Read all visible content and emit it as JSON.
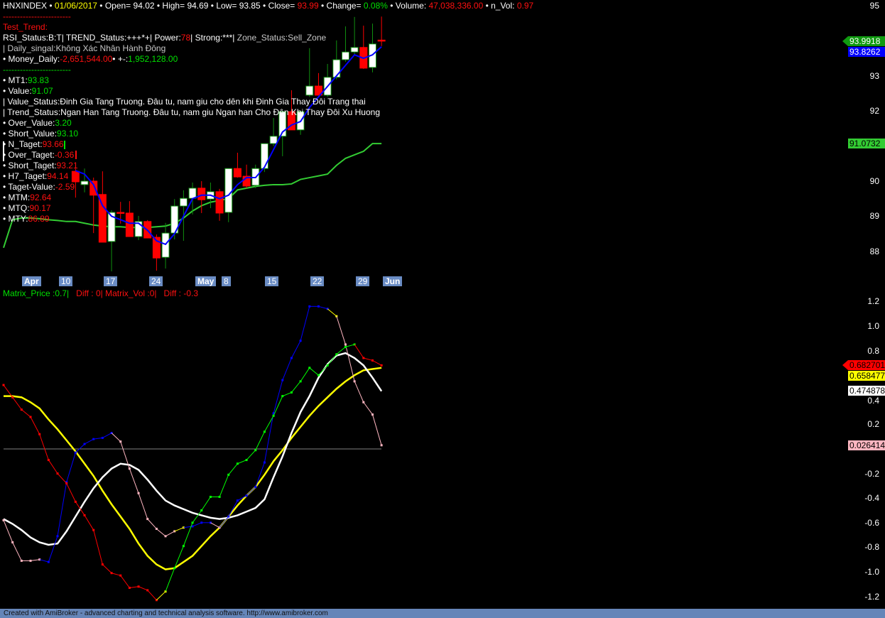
{
  "header_lines": [
    [
      {
        "t": "HNXINDEX",
        "c": "w"
      },
      {
        "t": " • ",
        "c": "w"
      },
      {
        "t": "01/06/2017",
        "c": "y"
      },
      {
        "t": " • Open= 94.02 • High= 94.69 • Low= 93.85 • Close= ",
        "c": "w"
      },
      {
        "t": "93.99",
        "c": "r"
      },
      {
        "t": " • Change= ",
        "c": "w"
      },
      {
        "t": "0.08%",
        "c": "g"
      },
      {
        "t": " • Volume: ",
        "c": "w"
      },
      {
        "t": "47,038,336.00",
        "c": "r"
      },
      {
        "t": " • n_Vol: ",
        "c": "w"
      },
      {
        "t": "0.97",
        "c": "r"
      }
    ],
    [
      {
        "t": "------------------------",
        "c": "r"
      }
    ],
    [
      {
        "t": "Test_Trend:",
        "c": "r"
      }
    ],
    [
      {
        "t": "RSI_Status:B:T| TREND_Status:+++*+| Power:",
        "c": "w"
      },
      {
        "t": "78",
        "c": "r"
      },
      {
        "t": "| Strong:***| ",
        "c": "w"
      },
      {
        "t": "Zone_Status:Sell_Zone",
        "c": "s"
      }
    ],
    [
      {
        "t": "| Daily_singal:Không Xác Nhân Hành Đông",
        "c": "s"
      }
    ],
    [
      {
        "t": "• Money_Daily:",
        "c": "w"
      },
      {
        "t": "-2,651,544.00",
        "c": "r"
      },
      {
        "t": "• +-:",
        "c": "w"
      },
      {
        "t": "1,952,128.00",
        "c": "g"
      }
    ],
    [
      {
        "t": "------------------------",
        "c": "g"
      }
    ],
    [
      {
        "t": "• MT1:",
        "c": "w"
      },
      {
        "t": "93.83",
        "c": "g"
      }
    ],
    [
      {
        "t": "• Value:",
        "c": "w"
      },
      {
        "t": "91.07",
        "c": "g"
      }
    ],
    [
      {
        "t": "| Value_Status:Đinh Gia Tang Truong. Đâu tu, nam giu cho dên khi Đinh Gia Thay Đôi Trang thai",
        "c": "w"
      }
    ],
    [
      {
        "t": "| Trend_Status:Ngan Han Tang Truong. Đâu tu, nam giu Ngan han Cho Đên Khi Thay Đôi Xu Huong",
        "c": "w"
      }
    ],
    [
      {
        "t": "• Over_Value:",
        "c": "w"
      },
      {
        "t": "3.20",
        "c": "g"
      }
    ],
    [
      {
        "t": "• Short_Value:",
        "c": "w"
      },
      {
        "t": "93.10",
        "c": "g"
      }
    ],
    [
      {
        "t": "• N_Taget:",
        "c": "w"
      },
      {
        "t": "93.66",
        "c": "r"
      }
    ],
    [
      {
        "t": "• Over_Taget:",
        "c": "w"
      },
      {
        "t": "-0.36",
        "c": "r"
      }
    ],
    [
      {
        "t": "• Short_Taget:",
        "c": "w"
      },
      {
        "t": "93.21",
        "c": "r"
      }
    ],
    [
      {
        "t": "• H7_Taget:",
        "c": "w"
      },
      {
        "t": "94.14",
        "c": "r"
      }
    ],
    [
      {
        "t": "• Taget-Value:",
        "c": "w"
      },
      {
        "t": "-2.59",
        "c": "r"
      }
    ],
    [
      {
        "t": "• MTM:",
        "c": "w"
      },
      {
        "t": "92.64",
        "c": "r"
      }
    ],
    [
      {
        "t": "• MTQ:",
        "c": "w"
      },
      {
        "t": "90.17",
        "c": "r"
      }
    ],
    [
      {
        "t": "• MTY:",
        "c": "w"
      },
      {
        "t": "86.89",
        "c": "r"
      }
    ]
  ],
  "colors": {
    "w": "#ffffff",
    "r": "#ff1010",
    "g": "#00e000",
    "y": "#ffff00",
    "s": "#c8c8c8",
    "up_body": "#ffffff",
    "up_edge": "#109010",
    "down": "#ff0000",
    "ma_fast": "#0000ff",
    "ma_slow": "#33cc33",
    "pink": "#ffb6c1",
    "blue": "#0000ff",
    "green": "#00ff00",
    "yellow": "#ffff00",
    "zero_line": "#808080",
    "date_bg": "#6a8cc4",
    "footer_bg": "#6585b8"
  },
  "price_axis": {
    "ticks": [
      "95",
      "93",
      "92",
      "90",
      "89",
      "88"
    ],
    "tick_values": [
      95,
      93,
      92,
      90,
      89,
      88
    ],
    "range": [
      87.2,
      95.1
    ],
    "tags": [
      {
        "text": "93.9918",
        "value": 93.9918,
        "bg": "#109a10",
        "fg": "#ffffff",
        "arrow": true
      },
      {
        "text": "93.8262",
        "value": 93.8262,
        "bg": "#0000ff",
        "fg": "#ffffff"
      },
      {
        "text": "91.0732",
        "value": 91.0732,
        "bg": "#33cc33",
        "fg": "#000000"
      }
    ]
  },
  "date_labels": [
    {
      "text": "Apr",
      "bold": true
    },
    {
      "text": "10"
    },
    {
      "text": "17"
    },
    {
      "text": "24"
    },
    {
      "text": "May",
      "bold": true
    },
    {
      "text": "8"
    },
    {
      "text": "15"
    },
    {
      "text": "22"
    },
    {
      "text": "29"
    },
    {
      "text": "Jun",
      "bold": true
    }
  ],
  "candles": [
    [
      90.28,
      90.36,
      89.53,
      89.98
    ],
    [
      89.9,
      90.36,
      89.68,
      90.0
    ],
    [
      90.0,
      90.1,
      88.52,
      89.6
    ],
    [
      89.62,
      90.28,
      88.26,
      88.26
    ],
    [
      88.28,
      89.17,
      87.43,
      89.11
    ],
    [
      89.11,
      89.41,
      88.79,
      89.09
    ],
    [
      89.09,
      89.43,
      88.42,
      88.42
    ],
    [
      88.42,
      89.01,
      88.32,
      88.85
    ],
    [
      88.85,
      88.89,
      88.38,
      88.38
    ],
    [
      88.4,
      88.48,
      87.45,
      87.81
    ],
    [
      87.83,
      88.81,
      87.51,
      88.52
    ],
    [
      88.52,
      89.49,
      88.34,
      89.29
    ],
    [
      89.29,
      89.74,
      88.3,
      89.51
    ],
    [
      89.51,
      89.96,
      89.05,
      89.8
    ],
    [
      89.8,
      90.0,
      89.09,
      89.47
    ],
    [
      89.49,
      89.96,
      89.23,
      89.7
    ],
    [
      89.7,
      89.78,
      88.87,
      89.09
    ],
    [
      89.11,
      90.36,
      88.83,
      90.36
    ],
    [
      90.36,
      90.81,
      90.1,
      90.12
    ],
    [
      90.14,
      90.47,
      89.8,
      89.86
    ],
    [
      89.88,
      90.47,
      89.8,
      90.36
    ],
    [
      90.36,
      91.07,
      90.26,
      91.07
    ],
    [
      91.07,
      91.8,
      91.0,
      91.28
    ],
    [
      91.28,
      91.98,
      90.71,
      91.98
    ],
    [
      91.98,
      92.59,
      91.46,
      91.46
    ],
    [
      91.46,
      91.98,
      91.32,
      91.98
    ],
    [
      92.45,
      93.79,
      92.4,
      92.71
    ],
    [
      92.71,
      93.08,
      92.45,
      92.45
    ],
    [
      92.45,
      93.34,
      92.4,
      92.96
    ],
    [
      92.96,
      94.01,
      92.9,
      93.46
    ],
    [
      93.46,
      94.41,
      93.4,
      93.68
    ],
    [
      93.68,
      94.68,
      93.6,
      93.81
    ],
    [
      93.81,
      94.43,
      93.2,
      93.22
    ],
    [
      93.24,
      94.49,
      93.1,
      93.91
    ],
    [
      94.02,
      94.69,
      93.85,
      93.99
    ]
  ],
  "ma_fast": [
    90.3,
    90.2,
    89.9,
    89.3,
    89.0,
    88.9,
    88.8,
    88.8,
    88.6,
    88.3,
    88.2,
    88.5,
    89.0,
    89.5,
    89.6,
    89.6,
    89.5,
    89.6,
    89.9,
    90.1,
    90.1,
    90.4,
    90.9,
    91.4,
    91.6,
    91.7,
    92.1,
    92.4,
    92.7,
    93.0,
    93.3,
    93.6,
    93.5,
    93.6,
    93.83
  ],
  "ma_slow": [
    88.1,
    88.9,
    88.95,
    88.95,
    88.93,
    88.9,
    88.88,
    88.85,
    88.85,
    88.8,
    88.75,
    88.72,
    88.7,
    88.7,
    88.68,
    88.68,
    88.68,
    88.7,
    88.72,
    88.8,
    88.95,
    89.15,
    89.3,
    89.4,
    89.45,
    89.5,
    89.75,
    89.8,
    89.85,
    89.88,
    89.9,
    89.9,
    89.92,
    90.05,
    90.1,
    90.15,
    90.2,
    90.45,
    90.65,
    90.75,
    90.85,
    91.07,
    91.07
  ],
  "osc_legend": [
    {
      "t": "Matrix_Price :0.7|",
      "c": "g"
    },
    {
      "t": "   Diff : 0| Matrix_Vol :0|   Diff : -0.3",
      "c": "r"
    }
  ],
  "osc_axis": {
    "ticks": [
      "1.2",
      "1.0",
      "0.8",
      "0.4",
      "0.2",
      "-0.2",
      "-0.4",
      "-0.6",
      "-0.8",
      "-1.0",
      "-1.2"
    ],
    "tick_values": [
      1.2,
      1.0,
      0.8,
      0.4,
      0.2,
      -0.2,
      -0.4,
      -0.6,
      -0.8,
      -1.0,
      -1.2
    ],
    "range": [
      -1.3,
      1.3
    ],
    "tags": [
      {
        "text": "0.682701",
        "value": 0.6827,
        "bg": "#ff0000",
        "fg": "#000000",
        "arrow": true
      },
      {
        "text": "0.658477",
        "value": 0.6585,
        "bg": "#ffff00",
        "fg": "#000000"
      },
      {
        "text": "0.474878",
        "value": 0.4749,
        "bg": "#ffffff",
        "fg": "#000000"
      },
      {
        "text": "0.026414",
        "value": 0.0264,
        "bg": "#ffb6c1",
        "fg": "#000000"
      }
    ]
  },
  "osc_series": {
    "matrix_price": {
      "values": [
        0.52,
        0.42,
        0.32,
        0.26,
        0.12,
        -0.09,
        -0.2,
        -0.28,
        -0.43,
        -0.54,
        -0.66,
        -0.94,
        -1.01,
        -1.03,
        -1.13,
        -1.12,
        -1.15,
        -1.23,
        -1.16,
        -0.97,
        -0.79,
        -0.6,
        -0.5,
        -0.39,
        -0.39,
        -0.21,
        -0.12,
        -0.09,
        -0.01,
        0.14,
        0.27,
        0.43,
        0.46,
        0.55,
        0.66,
        0.6,
        0.68,
        0.77,
        0.83,
        0.85,
        0.74,
        0.72,
        0.68
      ],
      "colors": "rrrrrrrrrrrrrrrrrrygggggggggggggggggggggrrr"
    },
    "matrix_vol": {
      "values": [
        -0.58,
        -0.76,
        -0.91,
        -0.91,
        -0.9,
        -0.92,
        -0.71,
        -0.27,
        -0.03,
        0.04,
        0.08,
        0.09,
        0.13,
        0.06,
        -0.16,
        -0.36,
        -0.57,
        -0.65,
        -0.71,
        -0.67,
        -0.64,
        -0.63,
        -0.6,
        -0.6,
        -0.64,
        -0.55,
        -0.42,
        -0.38,
        -0.31,
        -0.11,
        0.29,
        0.56,
        0.74,
        0.88,
        1.16,
        1.16,
        1.14,
        1.08,
        0.85,
        0.55,
        0.38,
        0.28,
        0.03
      ],
      "colors": "pppppbbbbbbbbpppppppybbbpbbbbbbbbbbbbyppppp"
    },
    "yellow_smooth": [
      0.43,
      0.43,
      0.42,
      0.38,
      0.33,
      0.24,
      0.16,
      0.07,
      -0.02,
      -0.12,
      -0.22,
      -0.34,
      -0.45,
      -0.55,
      -0.65,
      -0.77,
      -0.87,
      -0.94,
      -0.98,
      -0.97,
      -0.92,
      -0.87,
      -0.79,
      -0.71,
      -0.64,
      -0.55,
      -0.46,
      -0.38,
      -0.31,
      -0.21,
      -0.1,
      -0.01,
      0.09,
      0.18,
      0.27,
      0.35,
      0.42,
      0.49,
      0.55,
      0.6,
      0.64,
      0.65,
      0.66
    ],
    "white_smooth": [
      -0.57,
      -0.61,
      -0.66,
      -0.72,
      -0.76,
      -0.78,
      -0.77,
      -0.67,
      -0.55,
      -0.43,
      -0.32,
      -0.23,
      -0.16,
      -0.12,
      -0.13,
      -0.17,
      -0.25,
      -0.34,
      -0.42,
      -0.46,
      -0.49,
      -0.52,
      -0.54,
      -0.56,
      -0.57,
      -0.56,
      -0.54,
      -0.51,
      -0.48,
      -0.41,
      -0.23,
      -0.06,
      0.13,
      0.3,
      0.43,
      0.58,
      0.69,
      0.76,
      0.78,
      0.74,
      0.68,
      0.58,
      0.47
    ]
  },
  "footer": "Created with AmiBroker - advanced charting and technical analysis software. http://www.amibroker.com"
}
